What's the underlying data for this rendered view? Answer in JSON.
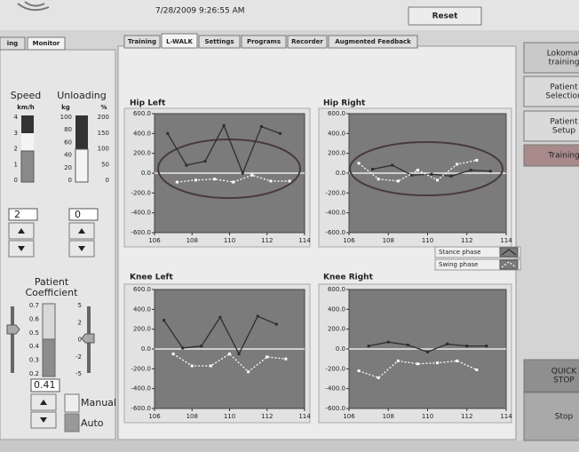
{
  "header": {
    "datetime": "7/28/2009 9:26:55 AM",
    "reset": "Reset"
  },
  "left_tabs": [
    "ing",
    "Monitor"
  ],
  "tabs": [
    "Training",
    "L-WALK",
    "Settings",
    "Programs",
    "Recorder",
    "Augmented Feedback"
  ],
  "active_tab": 1,
  "side_buttons": [
    [
      "Lokomat",
      "training"
    ],
    [
      "Patient",
      "Selection"
    ],
    [
      "Patient",
      "Setup"
    ],
    [
      "Training"
    ],
    [
      "QUICK",
      "STOP"
    ],
    [
      "Stop"
    ]
  ],
  "left_panel": {
    "speed": {
      "label": "Speed",
      "unit": "km/h",
      "ticks": [
        4,
        3,
        2,
        1,
        0
      ],
      "value": 2
    },
    "unloading": {
      "label": "Unloading",
      "unit_kg": "kg",
      "unit_pct": "%",
      "kg_ticks": [
        100,
        80,
        60,
        40,
        20,
        0
      ],
      "pct_ticks": [
        200,
        150,
        100,
        50,
        0
      ],
      "value": 0
    },
    "coefficient": {
      "label": [
        "Patient",
        "Coefficient"
      ],
      "ticks": [
        0.7,
        0.6,
        0.5,
        0.4,
        0.3,
        0.2
      ],
      "ticks2": [
        5,
        2,
        0,
        -2,
        -5
      ],
      "value": 0.41,
      "manual": "Manual",
      "auto": "Auto"
    }
  },
  "chart_data": [
    {
      "type": "line",
      "title": "Hip Left",
      "background": "#7b7b7b",
      "xlim": [
        106,
        114
      ],
      "xticks": [
        106,
        108,
        110,
        112,
        114
      ],
      "ylim": [
        -600,
        600
      ],
      "yticks": [
        {
          "value": 600,
          "label": "600.0"
        },
        {
          "value": 400,
          "label": "400.0"
        },
        {
          "value": 200,
          "label": "200.0"
        },
        {
          "value": 0,
          "label": "0.0"
        },
        {
          "value": -200,
          "label": "-200.0"
        },
        {
          "value": -400,
          "label": "-400.0"
        },
        {
          "value": -600,
          "label": "-600.0"
        }
      ],
      "series": [
        {
          "name": "Stance phase",
          "color": "#2e2e2e",
          "style": "solid",
          "x": [
            106.7,
            107.7,
            108.7,
            109.7,
            110.7,
            111.7,
            112.7
          ],
          "values": [
            400,
            80,
            120,
            480,
            0,
            470,
            400
          ]
        },
        {
          "name": "Swing phase",
          "color": "#ffffff",
          "style": "dashed",
          "x": [
            107.2,
            108.2,
            109.2,
            110.2,
            111.2,
            112.2,
            113.2
          ],
          "values": [
            -90,
            -70,
            -60,
            -90,
            -20,
            -80,
            -80
          ]
        }
      ]
    },
    {
      "type": "line",
      "title": "Hip Right",
      "background": "#7b7b7b",
      "xlim": [
        106,
        114
      ],
      "xticks": [
        106,
        108,
        110,
        112,
        114
      ],
      "ylim": [
        -600,
        600
      ],
      "yticks": [
        {
          "value": 600,
          "label": "600.0"
        },
        {
          "value": 400,
          "label": "400.0"
        },
        {
          "value": 200,
          "label": "200.0"
        },
        {
          "value": 0,
          "label": "0.0"
        },
        {
          "value": -200,
          "label": "-200.0"
        },
        {
          "value": -400,
          "label": "-400.0"
        },
        {
          "value": -600,
          "label": "-600.0"
        }
      ],
      "legend": "below",
      "series": [
        {
          "name": "Stance phase",
          "color": "#2e2e2e",
          "style": "solid",
          "x": [
            107.2,
            108.2,
            109.2,
            110.2,
            111.2,
            112.2,
            113.2
          ],
          "values": [
            40,
            80,
            -20,
            -10,
            -30,
            30,
            20
          ]
        },
        {
          "name": "Swing phase",
          "color": "#ffffff",
          "style": "dashed",
          "x": [
            106.5,
            107.5,
            108.5,
            109.5,
            110.5,
            111.5,
            112.5
          ],
          "values": [
            100,
            -60,
            -80,
            30,
            -70,
            90,
            130
          ]
        }
      ]
    },
    {
      "type": "line",
      "title": "Knee Left",
      "background": "#7b7b7b",
      "xlim": [
        106,
        114
      ],
      "xticks": [
        106,
        108,
        110,
        112,
        114
      ],
      "ylim": [
        -600,
        600
      ],
      "yticks": [
        {
          "value": 600,
          "label": "600.0"
        },
        {
          "value": 400,
          "label": "400.0"
        },
        {
          "value": 200,
          "label": "200.0"
        },
        {
          "value": 0,
          "label": "0.0"
        },
        {
          "value": -200,
          "label": "-200.0"
        },
        {
          "value": -400,
          "label": "-400.0"
        },
        {
          "value": -600,
          "label": "-600.0"
        }
      ],
      "series": [
        {
          "name": "Stance phase",
          "color": "#2e2e2e",
          "style": "solid",
          "x": [
            106.5,
            107.5,
            108.5,
            109.5,
            110.5,
            111.5,
            112.5
          ],
          "values": [
            290,
            10,
            30,
            320,
            -50,
            330,
            250
          ]
        },
        {
          "name": "Swing phase",
          "color": "#ffffff",
          "style": "dashed",
          "x": [
            107,
            108,
            109,
            110,
            111,
            112,
            113
          ],
          "values": [
            -50,
            -170,
            -170,
            -50,
            -230,
            -80,
            -100
          ]
        }
      ]
    },
    {
      "type": "line",
      "title": "Knee Right",
      "background": "#7b7b7b",
      "xlim": [
        106,
        114
      ],
      "xticks": [
        106,
        108,
        110,
        112,
        114
      ],
      "ylim": [
        -600,
        600
      ],
      "yticks": [
        {
          "value": 600,
          "label": "600.0"
        },
        {
          "value": 400,
          "label": "400.0"
        },
        {
          "value": 200,
          "label": "200.0"
        },
        {
          "value": 0,
          "label": "0.0"
        },
        {
          "value": -200,
          "label": "-200.0"
        },
        {
          "value": -400,
          "label": "-400.0"
        },
        {
          "value": -600,
          "label": "-600.0"
        }
      ],
      "series": [
        {
          "name": "Stance phase",
          "color": "#2e2e2e",
          "style": "solid",
          "x": [
            107,
            108,
            109,
            110,
            111,
            112,
            113
          ],
          "values": [
            30,
            70,
            40,
            -30,
            50,
            30,
            30
          ]
        },
        {
          "name": "Swing phase",
          "color": "#ffffff",
          "style": "dashed",
          "x": [
            106.5,
            107.5,
            108.5,
            109.5,
            110.5,
            111.5,
            112.5
          ],
          "values": [
            -220,
            -290,
            -120,
            -150,
            -140,
            -120,
            -210
          ]
        }
      ]
    }
  ]
}
